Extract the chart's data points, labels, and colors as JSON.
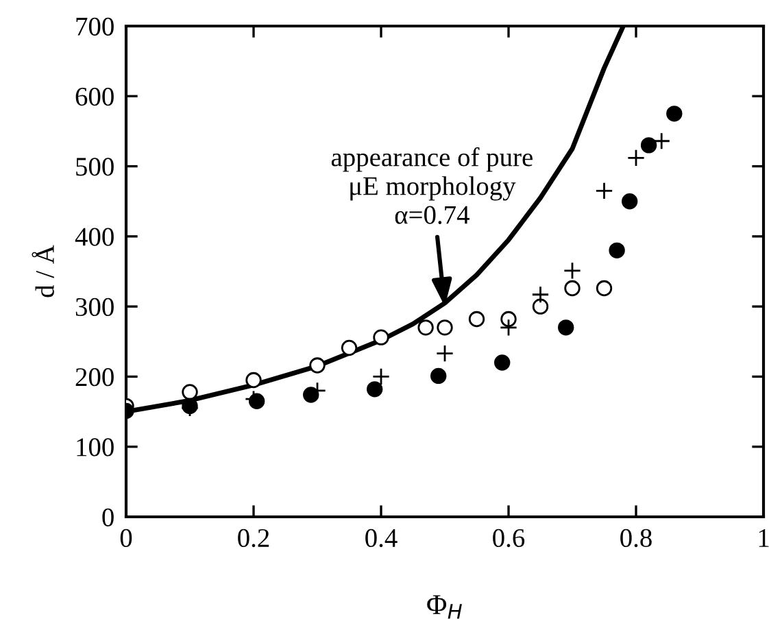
{
  "chart_data": {
    "type": "scatter",
    "xlabel": "Φ$_{H}$",
    "ylabel": "d / Å",
    "xlim": [
      0,
      1
    ],
    "ylim": [
      0,
      700
    ],
    "xticks": [
      0,
      0.2,
      0.4,
      0.6,
      0.8,
      1
    ],
    "yticks": [
      0,
      100,
      200,
      300,
      400,
      500,
      600,
      700
    ],
    "grid": false,
    "legend": false,
    "annotations": [
      {
        "text": "appearance of pure\nμE morphology\nα=0.74",
        "x": 0.5,
        "y": 300
      }
    ],
    "series": [
      {
        "type": "line",
        "color": "#000000",
        "marker": "none",
        "line_style": "solid",
        "x": [
          0,
          0.1,
          0.2,
          0.3,
          0.4,
          0.45,
          0.5,
          0.55,
          0.6,
          0.65,
          0.7,
          0.75,
          0.78
        ],
        "values": [
          150,
          166,
          188,
          215,
          252,
          275,
          305,
          345,
          395,
          455,
          525,
          640,
          700
        ]
      },
      {
        "color": "#ffffff",
        "marker": "circle",
        "x": [
          0,
          0.1,
          0.2,
          0.3,
          0.35,
          0.4,
          0.47,
          0.5,
          0.55,
          0.6,
          0.65,
          0.7,
          0.75
        ],
        "values": [
          158,
          178,
          195,
          216,
          241,
          256,
          270,
          270,
          282,
          282,
          300,
          326,
          326
        ]
      },
      {
        "color": "#000000",
        "marker": "circle",
        "x": [
          0,
          0.1,
          0.205,
          0.29,
          0.39,
          0.49,
          0.59,
          0.69,
          0.77,
          0.79,
          0.82,
          0.86
        ],
        "values": [
          151,
          158,
          165,
          174,
          182,
          201,
          220,
          270,
          380,
          450,
          530,
          575
        ]
      },
      {
        "color": "#000000",
        "marker": "cross",
        "x": [
          0.1,
          0.2,
          0.3,
          0.4,
          0.5,
          0.6,
          0.65,
          0.7,
          0.75,
          0.8,
          0.84
        ],
        "values": [
          155,
          168,
          180,
          200,
          233,
          270,
          317,
          351,
          465,
          512,
          536
        ]
      }
    ]
  }
}
